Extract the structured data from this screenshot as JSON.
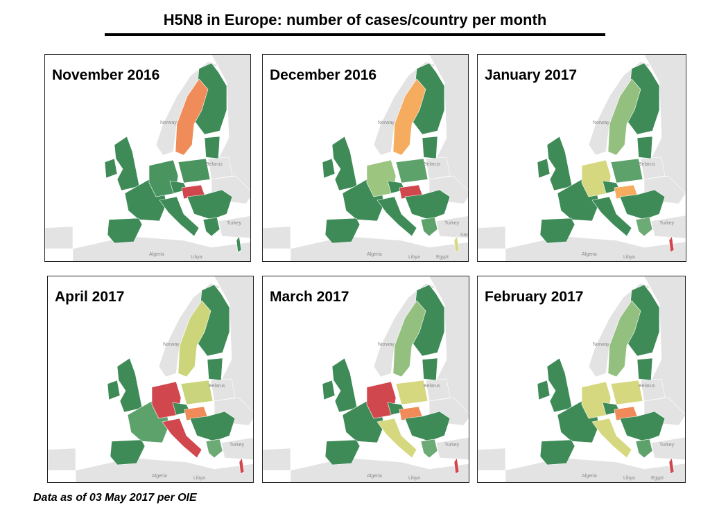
{
  "header": {
    "title": "H5N8 in Europe: number of cases/country per month"
  },
  "panels": [
    {
      "title": "November 2016",
      "labels": [
        "Norway",
        "Belarus",
        "Turkey",
        "Algeria",
        "Libya"
      ]
    },
    {
      "title": "December 2016",
      "labels": [
        "Norway",
        "Belarus",
        "Turkey",
        "Algeria",
        "Libya",
        "Egypt",
        "Iraq"
      ]
    },
    {
      "title": "January 2017",
      "labels": [
        "Norway",
        "Belarus",
        "Turkey",
        "Algeria",
        "Libya"
      ]
    },
    {
      "title": "April 2017",
      "labels": [
        "Norway",
        "Belarus",
        "Turkey",
        "Algeria",
        "Libya"
      ]
    },
    {
      "title": "March 2017",
      "labels": [
        "Norway",
        "Belarus",
        "Turkey",
        "Algeria",
        "Libya"
      ]
    },
    {
      "title": "February 2017",
      "labels": [
        "Norway",
        "Belarus",
        "Turkey",
        "Algeria",
        "Libya",
        "Egypt"
      ]
    }
  ],
  "footer": {
    "note": "Data as of 03 May 2017 per OIE"
  }
}
